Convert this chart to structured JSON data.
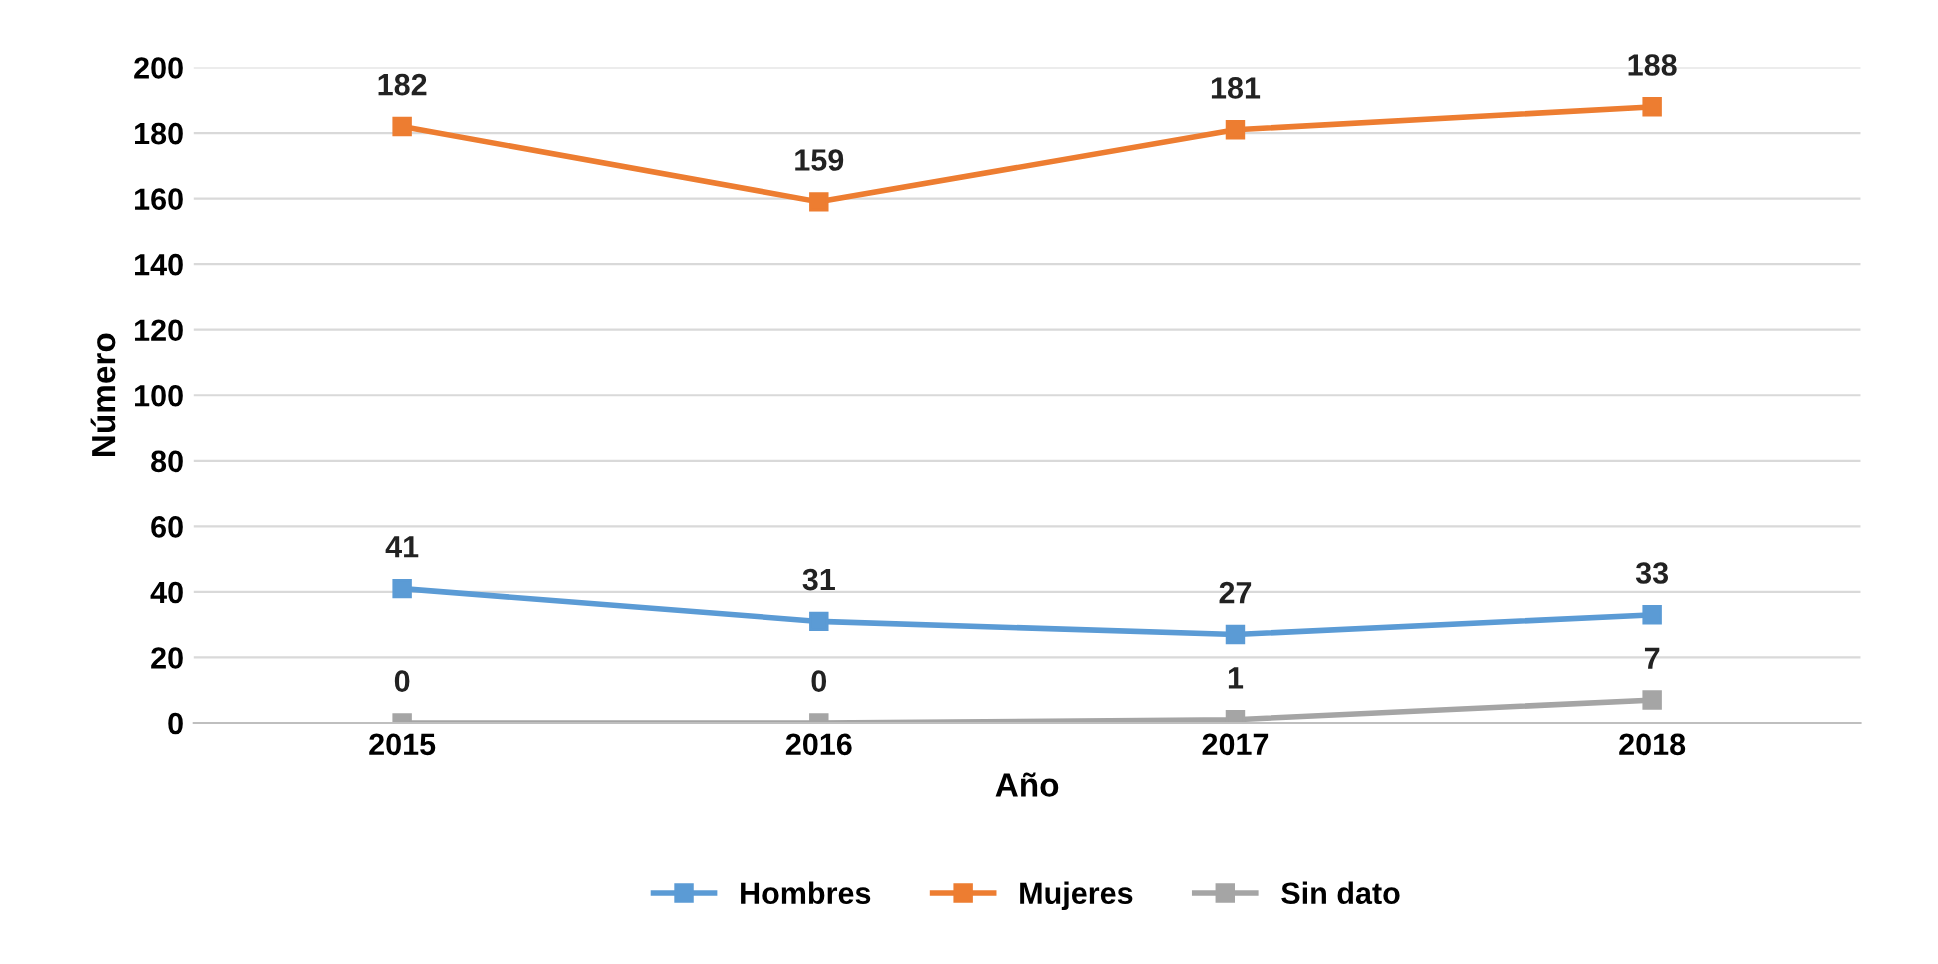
{
  "chart_data": {
    "type": "line",
    "xlabel": "Año",
    "ylabel": "Número",
    "categories": [
      "2015",
      "2016",
      "2017",
      "2018"
    ],
    "series": [
      {
        "name": "Hombres",
        "color": "#5b9bd5",
        "values": [
          41,
          31,
          27,
          33
        ]
      },
      {
        "name": "Mujeres",
        "color": "#ed7d31",
        "values": [
          182,
          159,
          181,
          188
        ]
      },
      {
        "name": "Sin dato",
        "color": "#a5a5a5",
        "values": [
          0,
          0,
          1,
          7
        ]
      }
    ],
    "ylim": [
      0,
      200
    ],
    "yticks": [
      0,
      20,
      40,
      60,
      80,
      100,
      120,
      140,
      160,
      180,
      200
    ],
    "grid": "y",
    "legend": "bottom",
    "marker": "square",
    "line_style": "solid",
    "data_labels": true
  }
}
